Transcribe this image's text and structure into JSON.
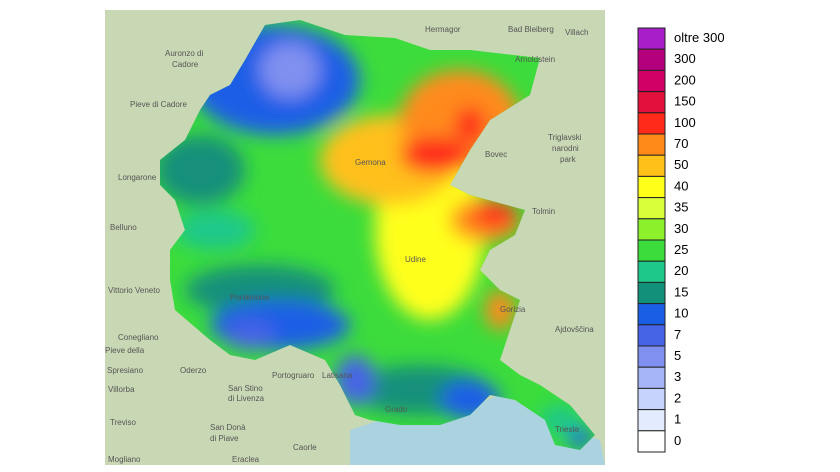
{
  "map": {
    "places": [
      "Auronzo di",
      "Cadore",
      "Hermagor",
      "Bad Bleiberg",
      "Villach",
      "Arnoldstein",
      "Pieve di Cadore",
      "Triglavski",
      "narodni",
      "park",
      "Bovec",
      "Longarone",
      "Belluno",
      "Tolmin",
      "Vittorio Veneto",
      "Conegliano",
      "Ajdovščina",
      "Pieve della",
      "Spresiano",
      "Oderzo",
      "San Stino",
      "di Livenza",
      "Portogruaro",
      "Latisana",
      "Villorba",
      "Treviso",
      "San Donà",
      "di Piave",
      "Caorle",
      "Eraclea",
      "Trieste",
      "Mogliano",
      "Gemona",
      "Udine",
      "Pordenone",
      "Gorizia",
      "Grado"
    ],
    "legend": [
      {
        "label": "oltre 300",
        "color": "#a81ec8"
      },
      {
        "label": "300",
        "color": "#b4007d"
      },
      {
        "label": "200",
        "color": "#d00066"
      },
      {
        "label": "150",
        "color": "#e2103a"
      },
      {
        "label": "100",
        "color": "#ff2a1a"
      },
      {
        "label": "70",
        "color": "#ff8a1a"
      },
      {
        "label": "50",
        "color": "#ffc01a"
      },
      {
        "label": "40",
        "color": "#ffff1a"
      },
      {
        "label": "35",
        "color": "#d8ff3a"
      },
      {
        "label": "30",
        "color": "#8cf02a"
      },
      {
        "label": "25",
        "color": "#3cdc3c"
      },
      {
        "label": "20",
        "color": "#1ec88a"
      },
      {
        "label": "15",
        "color": "#12907a"
      },
      {
        "label": "10",
        "color": "#1a5ee6"
      },
      {
        "label": "7",
        "color": "#4664e6"
      },
      {
        "label": "5",
        "color": "#8090f0"
      },
      {
        "label": "3",
        "color": "#a6b4f8"
      },
      {
        "label": "2",
        "color": "#c6d4fc"
      },
      {
        "label": "1",
        "color": "#e2ecfe"
      },
      {
        "label": "0",
        "color": "#ffffff"
      }
    ]
  }
}
